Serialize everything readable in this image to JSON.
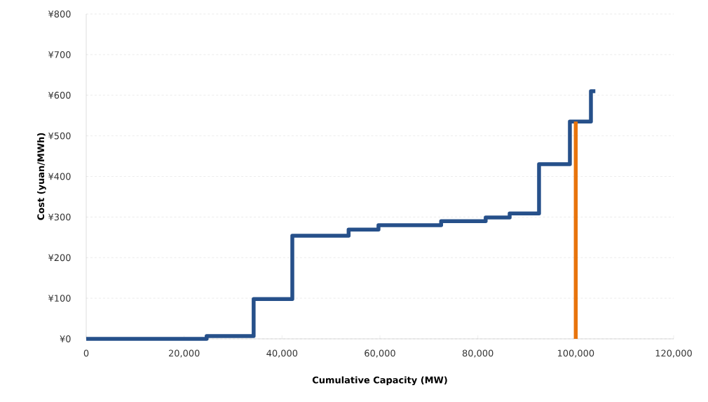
{
  "chart_data": {
    "type": "step",
    "xlabel": "Cumulative Capacity (MW)",
    "ylabel": "Cost (yuan/MWh)",
    "series": [
      {
        "color": "#26508a",
        "x": [
          0,
          24600,
          34200,
          42100,
          53600,
          59700,
          72500,
          81600,
          86500,
          92500,
          98800,
          103100,
          104000
        ],
        "values": [
          0,
          7,
          98,
          254,
          269,
          280,
          290,
          299,
          309,
          430,
          535,
          610,
          610
        ]
      },
      {
        "type": "line",
        "color": "#e8740c",
        "x": [
          100000,
          100000
        ],
        "values": [
          0,
          535
        ]
      }
    ],
    "xlim": [
      0,
      120000
    ],
    "ylim": [
      0,
      800
    ],
    "xticks": [
      0,
      {
        "value": 20000,
        "label": "20,000"
      },
      {
        "value": 40000,
        "label": "40,000"
      },
      {
        "value": 60000,
        "label": "60,000"
      },
      {
        "value": 80000,
        "label": "80,000"
      },
      {
        "value": 100000,
        "label": "100,000"
      },
      {
        "value": 120000,
        "label": "120,000"
      }
    ],
    "yticks": [
      {
        "value": 0,
        "label": "¥0"
      },
      {
        "value": 100,
        "label": "¥100"
      },
      {
        "value": 200,
        "label": "¥200"
      },
      {
        "value": 300,
        "label": "¥300"
      },
      {
        "value": 400,
        "label": "¥400"
      },
      {
        "value": 500,
        "label": "¥500"
      },
      {
        "value": 600,
        "label": "¥600"
      },
      {
        "value": 700,
        "label": "¥700"
      },
      {
        "value": 800,
        "label": "¥800"
      }
    ],
    "grid": "y",
    "marker": "none",
    "line_style": "solid"
  }
}
